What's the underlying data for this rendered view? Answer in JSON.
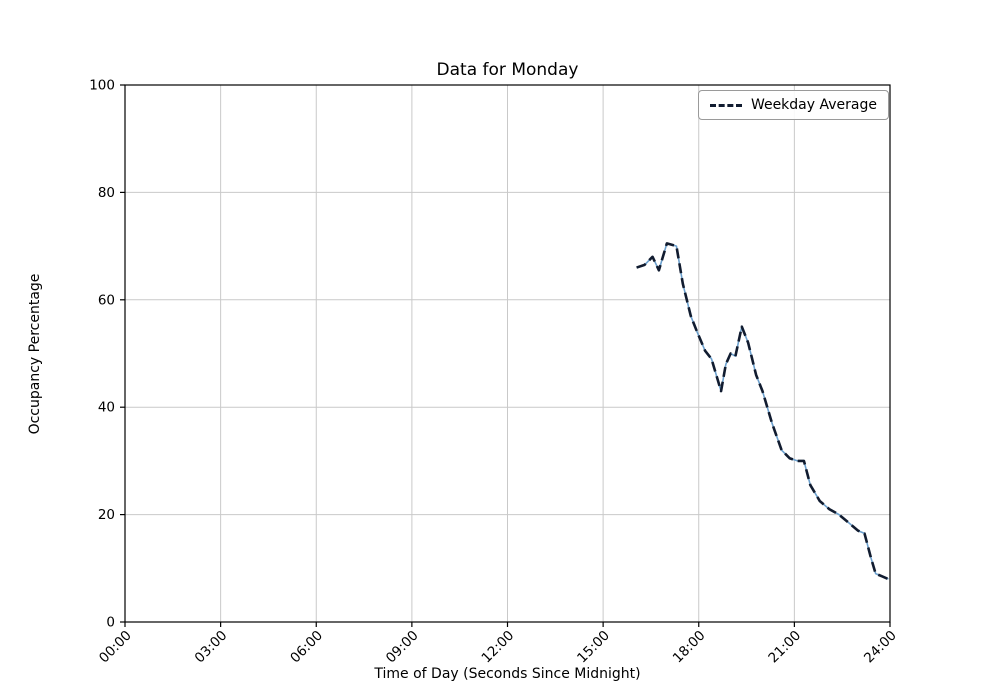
{
  "chart_data": {
    "type": "line",
    "title": "Data for Monday",
    "xlabel": "Time of Day (Seconds Since Midnight)",
    "ylabel": "Occupancy Percentage",
    "xlim_hours": [
      0,
      24
    ],
    "ylim": [
      0,
      100
    ],
    "grid": true,
    "x_ticks": [
      {
        "hour": 0,
        "label": "00:00"
      },
      {
        "hour": 3,
        "label": "03:00"
      },
      {
        "hour": 6,
        "label": "06:00"
      },
      {
        "hour": 9,
        "label": "09:00"
      },
      {
        "hour": 12,
        "label": "12:00"
      },
      {
        "hour": 15,
        "label": "15:00"
      },
      {
        "hour": 18,
        "label": "18:00"
      },
      {
        "hour": 21,
        "label": "21:00"
      },
      {
        "hour": 24,
        "label": "24:00"
      }
    ],
    "y_ticks": [
      0,
      20,
      40,
      60,
      80,
      100
    ],
    "colors": {
      "grid": "#c9c9c9",
      "spine": "#000000",
      "monday_line": "#6ca0cd",
      "average_line": "#111c30"
    },
    "legend": {
      "position": "upper right",
      "entries": [
        {
          "label": "Weekday Average",
          "style": "dashed",
          "color": "#111c30"
        }
      ]
    },
    "points": {
      "x_hours": [
        16.05,
        16.3,
        16.55,
        16.75,
        17.0,
        17.3,
        17.5,
        17.75,
        17.95,
        18.2,
        18.4,
        18.55,
        18.7,
        18.85,
        19.0,
        19.15,
        19.35,
        19.55,
        19.8,
        20.0,
        20.3,
        20.6,
        20.85,
        21.1,
        21.3,
        21.5,
        21.8,
        22.1,
        22.4,
        22.7,
        23.0,
        23.2,
        23.4,
        23.55,
        23.75,
        23.95
      ],
      "y": [
        66,
        66.5,
        68,
        65.5,
        70.5,
        70,
        63,
        57,
        54,
        50.5,
        49,
        46,
        43,
        48,
        50,
        49.5,
        55,
        52,
        46,
        43,
        37,
        32,
        30.5,
        30,
        30,
        25.5,
        22.5,
        21,
        20,
        18.5,
        17,
        16.5,
        12,
        9,
        8.5,
        8
      ]
    },
    "series": [
      {
        "name": "Monday",
        "style": "solid",
        "color": "#6ca0cd",
        "width": 1.6
      },
      {
        "name": "Weekday Average",
        "style": "dashed",
        "color": "#111c30",
        "width": 2.6
      }
    ]
  }
}
